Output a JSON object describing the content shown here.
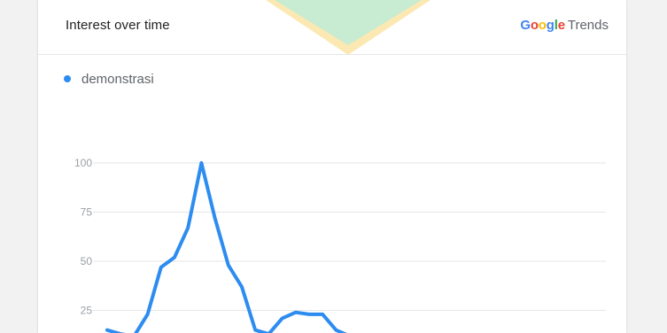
{
  "card": {
    "title": "Interest over time",
    "brand": {
      "letters": [
        {
          "char": "G",
          "color": "#4285F4"
        },
        {
          "char": "o",
          "color": "#EA4335"
        },
        {
          "char": "o",
          "color": "#FBBC05"
        },
        {
          "char": "g",
          "color": "#4285F4"
        },
        {
          "char": "l",
          "color": "#34A853"
        },
        {
          "char": "e",
          "color": "#EA4335"
        }
      ],
      "suffix": "Trends"
    }
  },
  "colors": {
    "series": "#2d8cf0",
    "grid": "#e6e6e6",
    "deco_fill": "#c8ecd1",
    "deco_border": "#fce8b2"
  },
  "chart_data": {
    "type": "line",
    "title": "Interest over time",
    "ylim": [
      0,
      100
    ],
    "yticks": [
      {
        "value": 25,
        "label": "25"
      },
      {
        "value": 50,
        "label": "50"
      },
      {
        "value": 75,
        "label": "75"
      },
      {
        "value": 100,
        "label": "100"
      }
    ],
    "grid": true,
    "legend": "top-left",
    "series": [
      {
        "name": "demonstrasi",
        "values": [
          15,
          13,
          12,
          23,
          47,
          52,
          67,
          100,
          72,
          48,
          37,
          15,
          13,
          21,
          24,
          23,
          23,
          15,
          12
        ]
      }
    ]
  }
}
